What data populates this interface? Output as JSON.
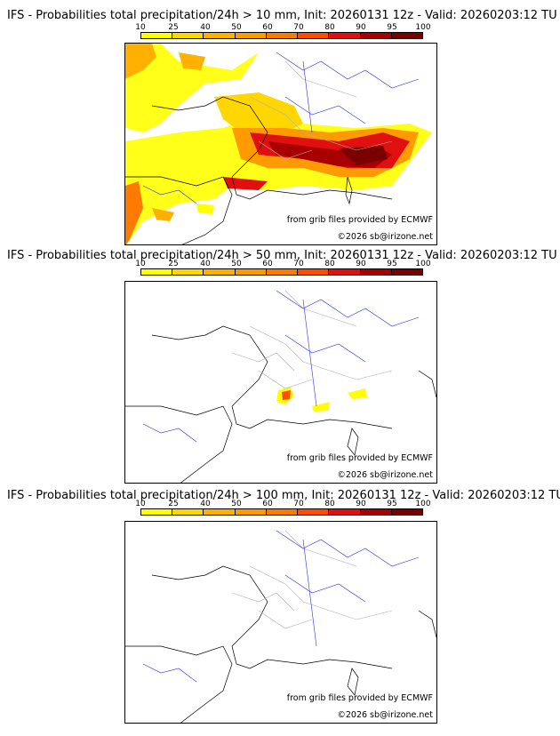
{
  "panels": [
    {
      "title": "IFS - Probabilities total precipitation/24h > 10 mm, Init: 20260131 12z - Valid: 20260203:12 TU",
      "credit_source": "from grib files provided by ECMWF",
      "credit_copyright": "©2026 sb@irizone.net"
    },
    {
      "title": "IFS - Probabilities total precipitation/24h > 50 mm, Init: 20260131 12z - Valid: 20260203:12 TU",
      "credit_source": "from grib files provided by ECMWF",
      "credit_copyright": "©2026 sb@irizone.net"
    },
    {
      "title": "IFS - Probabilities total precipitation/24h > 100 mm, Init: 20260131 12z - Valid: 20260203:12 TU",
      "credit_source": "from grib files provided by ECMWF",
      "credit_copyright": "©2026 sb@irizone.net"
    }
  ],
  "scale": {
    "labels": [
      "10",
      "25",
      "40",
      "50",
      "60",
      "70",
      "80",
      "90",
      "95",
      "100"
    ],
    "colors": [
      "#ffff00",
      "#ffd700",
      "#ffb000",
      "#ff9a00",
      "#ff7a00",
      "#ff4d00",
      "#e01010",
      "#a80000",
      "#7a0000"
    ]
  },
  "colors": {
    "border": "#b0b0b0",
    "river": "#3030e0",
    "coast": "#000000"
  }
}
